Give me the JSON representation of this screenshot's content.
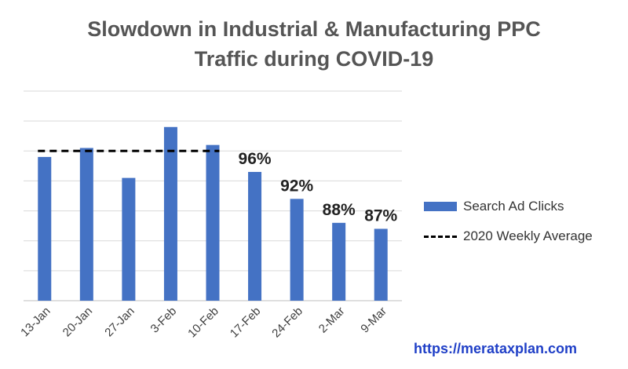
{
  "title_lines": [
    "Slowdown in Industrial & Manufacturing PPC",
    "Traffic during COVID-19"
  ],
  "chart_data": {
    "type": "bar",
    "title": "Slowdown in Industrial & Manufacturing PPC Traffic during COVID-19",
    "categories": [
      "13-Jan",
      "20-Jan",
      "27-Jan",
      "3-Feb",
      "10-Feb",
      "17-Feb",
      "24-Feb",
      "2-Mar",
      "9-Mar"
    ],
    "series": [
      {
        "name": "Search Ad Clicks",
        "values": [
          4.8,
          5.1,
          4.1,
          5.8,
          5.2,
          4.3,
          3.4,
          2.6,
          2.4
        ],
        "data_labels": [
          "",
          "",
          "",
          "",
          "",
          "96%",
          "92%",
          "88%",
          "87%"
        ]
      }
    ],
    "reference_line": {
      "name": "2020 Weekly Average",
      "value": 5.0,
      "from_category": "13-Jan",
      "to_category": "10-Feb"
    },
    "ylim": [
      0,
      7
    ],
    "grid_step": 1,
    "grid": true,
    "y_tick_labels_shown": false,
    "xlabel": "",
    "ylabel": "",
    "legend_position": "right"
  },
  "legend": {
    "bar_label": "Search Ad Clicks",
    "line_label": "2020 Weekly Average"
  },
  "source_url": "https://merataxplan.com",
  "colors": {
    "bar": "#4472C4",
    "grid": "#D9D9D9",
    "axis": "#BFBFBF",
    "title": "#555555",
    "tick_label": "#404040",
    "data_label": "#222222",
    "avg_line": "#000000",
    "url": "#1F3FC7"
  }
}
